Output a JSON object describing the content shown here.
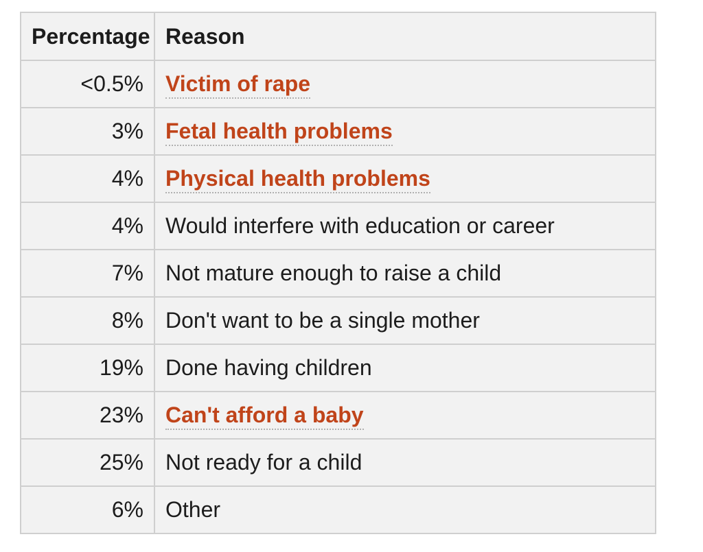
{
  "table": {
    "headers": {
      "percentage": "Percentage",
      "reason": "Reason"
    },
    "rows": [
      {
        "percentage": "<0.5%",
        "reason": "Victim of rape",
        "link": true
      },
      {
        "percentage": "3%",
        "reason": "Fetal health problems",
        "link": true
      },
      {
        "percentage": "4%",
        "reason": "Physical health problems",
        "link": true
      },
      {
        "percentage": "4%",
        "reason": "Would interfere with education or career",
        "link": false
      },
      {
        "percentage": "7%",
        "reason": "Not mature enough to raise a child",
        "link": false
      },
      {
        "percentage": "8%",
        "reason": "Don't want to be a single mother",
        "link": false
      },
      {
        "percentage": "19%",
        "reason": "Done having children",
        "link": false
      },
      {
        "percentage": "23%",
        "reason": "Can't afford a baby",
        "link": true
      },
      {
        "percentage": "25%",
        "reason": "Not ready for a child",
        "link": false
      },
      {
        "percentage": "6%",
        "reason": "Other",
        "link": false
      }
    ]
  },
  "colors": {
    "link": "#c0441a",
    "text": "#1c1c1c",
    "background": "#f2f2f2",
    "border": "#cfcfcf"
  }
}
